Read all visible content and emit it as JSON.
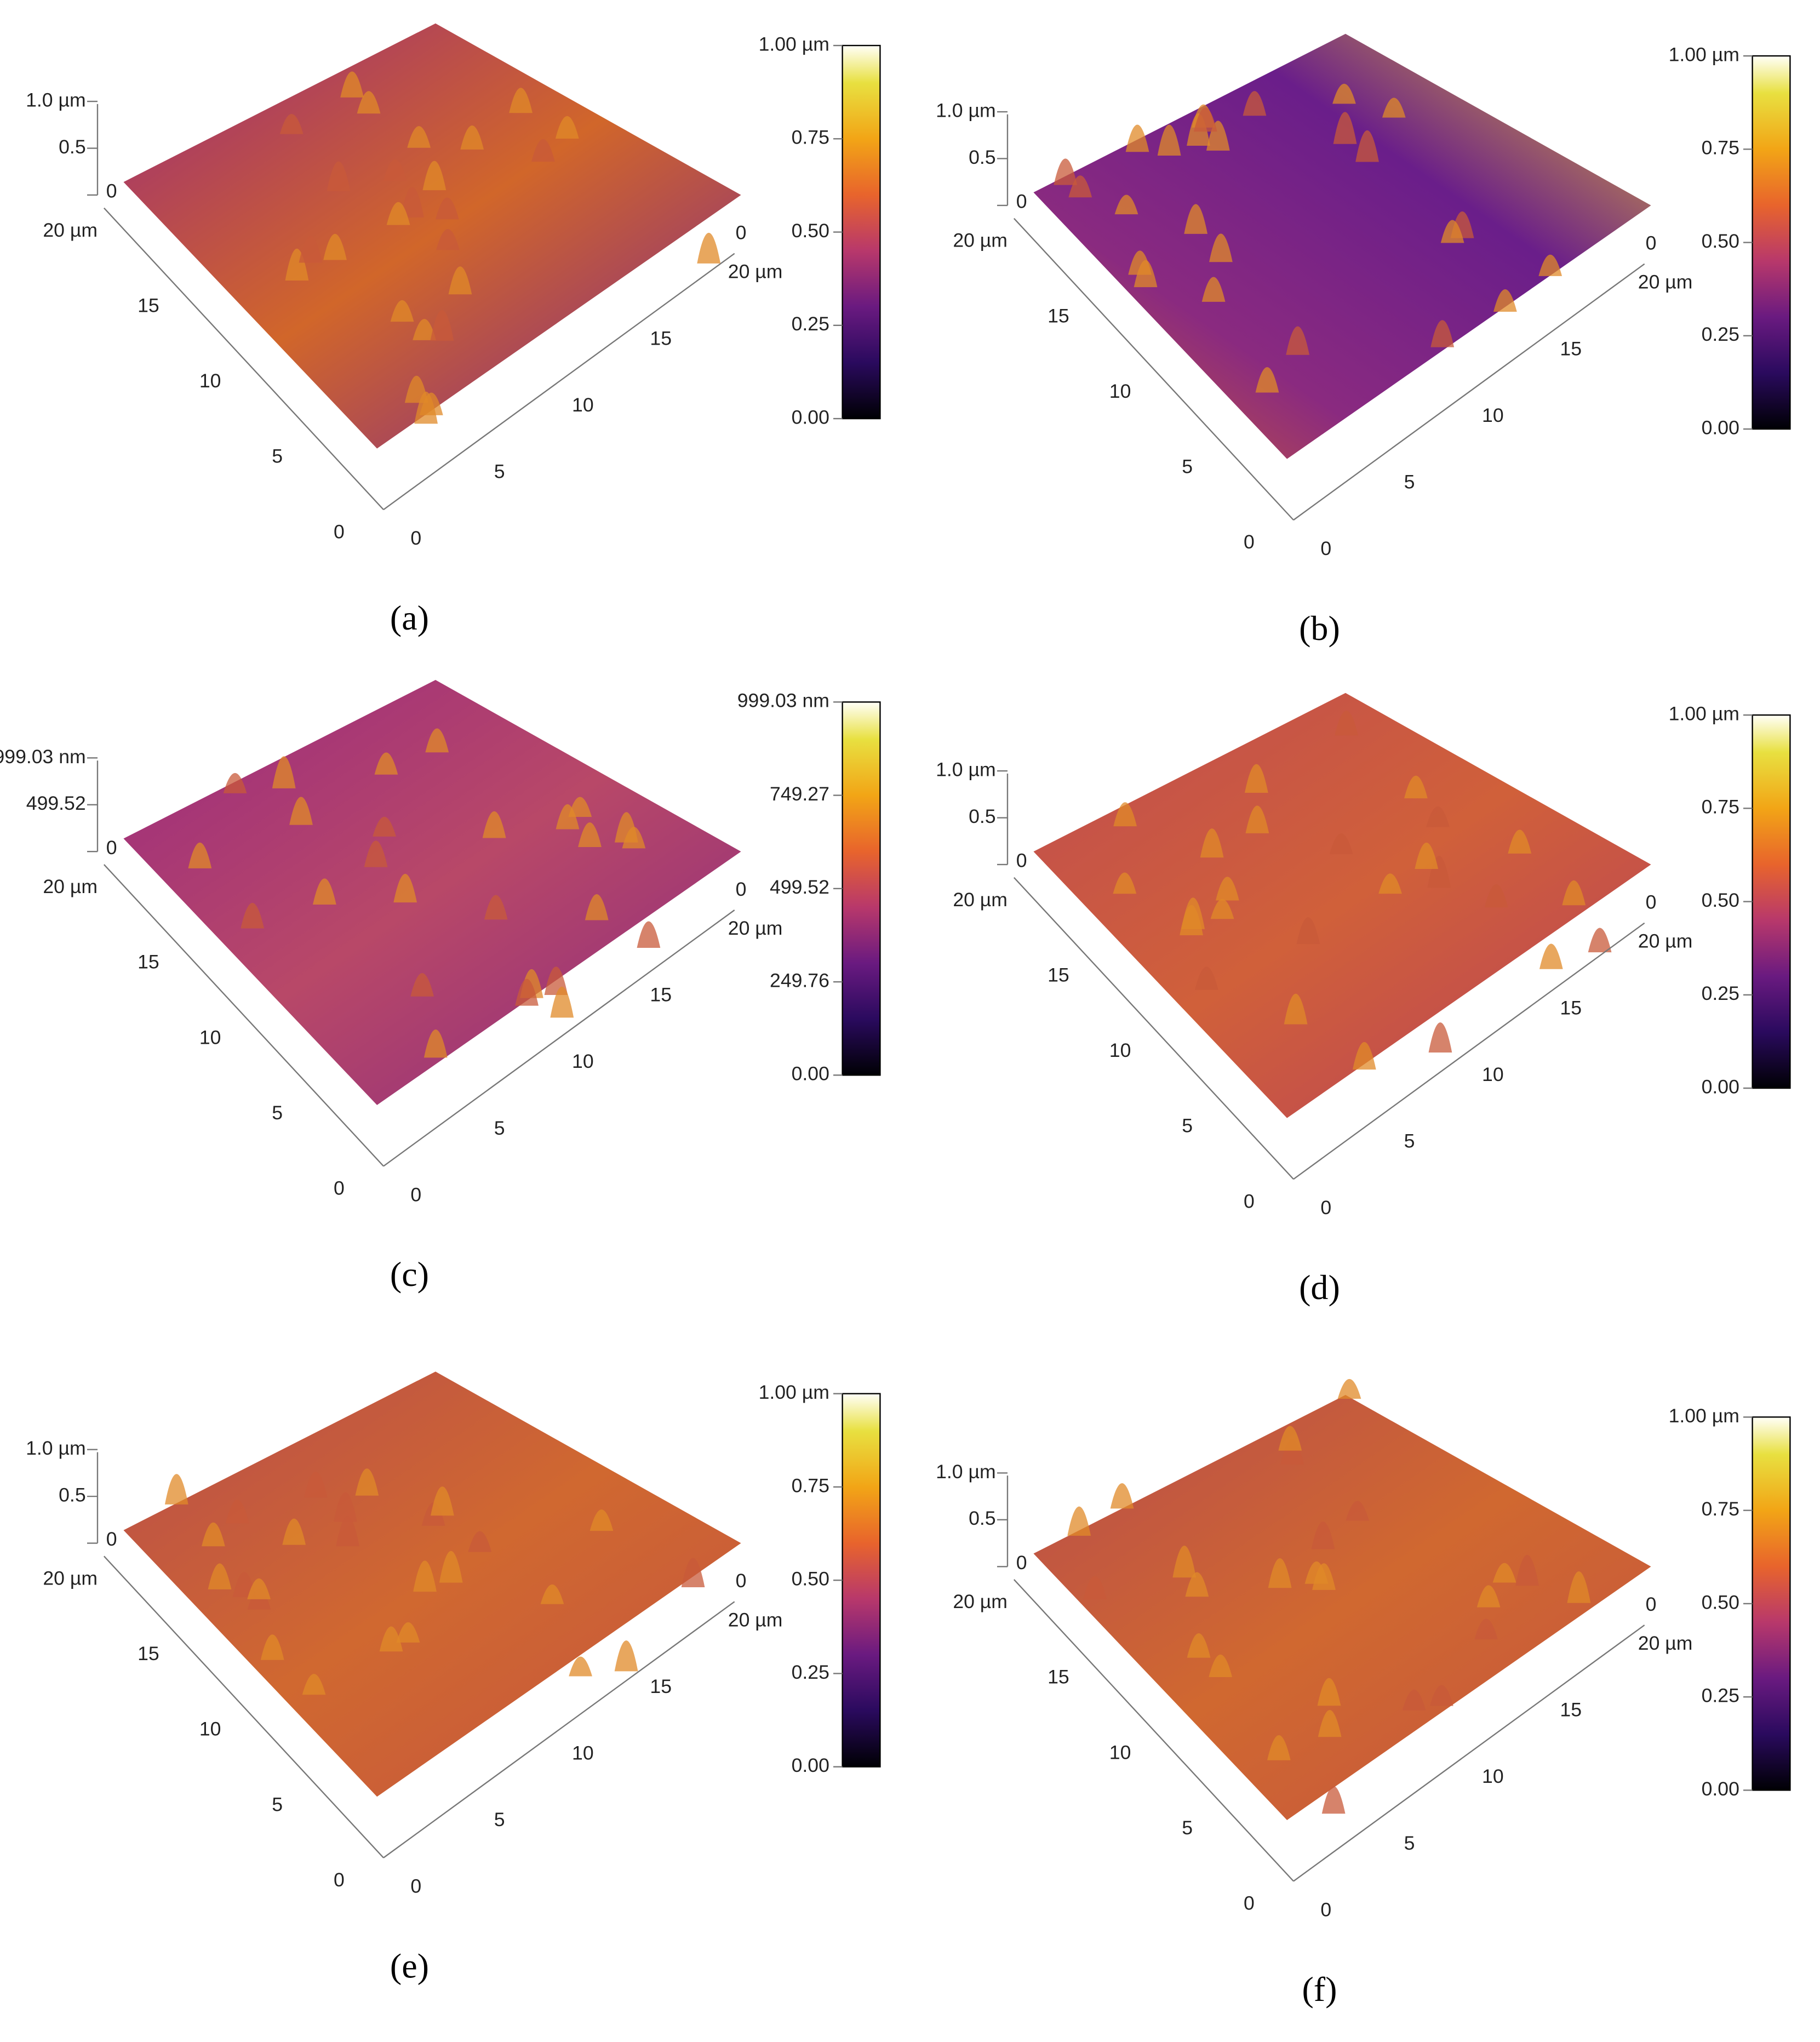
{
  "panels": [
    {
      "label": "(a)",
      "z_ticks": [
        "1.0 µm",
        "0.5",
        "0"
      ],
      "y_ticks": [
        "20 µm",
        "15",
        "10",
        "5",
        "0"
      ],
      "x_ticks": [
        "0",
        "5",
        "10",
        "15",
        "20 µm"
      ],
      "x_end": "0",
      "colorbar_ticks": [
        "1.00 µm",
        "0.75",
        "0.50",
        "0.25",
        "0.00"
      ]
    },
    {
      "label": "(b)",
      "z_ticks": [
        "1.0 µm",
        "0.5",
        "0"
      ],
      "y_ticks": [
        "20 µm",
        "15",
        "10",
        "5",
        "0"
      ],
      "x_ticks": [
        "0",
        "5",
        "10",
        "15",
        "20 µm"
      ],
      "x_end": "0",
      "colorbar_ticks": [
        "1.00 µm",
        "0.75",
        "0.50",
        "0.25",
        "0.00"
      ]
    },
    {
      "label": "(c)",
      "z_ticks": [
        "999.03 nm",
        "499.52",
        "0"
      ],
      "y_ticks": [
        "20 µm",
        "15",
        "10",
        "5",
        "0"
      ],
      "x_ticks": [
        "0",
        "5",
        "10",
        "15",
        "20 µm"
      ],
      "x_end": "0",
      "colorbar_ticks": [
        "999.03 nm",
        "749.27",
        "499.52",
        "249.76",
        "0.00"
      ]
    },
    {
      "label": "(d)",
      "z_ticks": [
        "1.0 µm",
        "0.5",
        "0"
      ],
      "y_ticks": [
        "20 µm",
        "15",
        "10",
        "5",
        "0"
      ],
      "x_ticks": [
        "0",
        "5",
        "10",
        "15",
        "20 µm"
      ],
      "x_end": "0",
      "colorbar_ticks": [
        "1.00 µm",
        "0.75",
        "0.50",
        "0.25",
        "0.00"
      ]
    },
    {
      "label": "(e)",
      "z_ticks": [
        "1.0 µm",
        "0.5",
        "0"
      ],
      "y_ticks": [
        "20 µm",
        "15",
        "10",
        "5",
        "0"
      ],
      "x_ticks": [
        "0",
        "5",
        "10",
        "15",
        "20 µm"
      ],
      "x_end": "0",
      "colorbar_ticks": [
        "1.00 µm",
        "0.75",
        "0.50",
        "0.25",
        "0.00"
      ]
    },
    {
      "label": "(f)",
      "z_ticks": [
        "1.0 µm",
        "0.5",
        "0"
      ],
      "y_ticks": [
        "20 µm",
        "15",
        "10",
        "5",
        "0"
      ],
      "x_ticks": [
        "0",
        "5",
        "10",
        "15",
        "20 µm"
      ],
      "x_end": "0",
      "colorbar_ticks": [
        "1.00 µm",
        "0.75",
        "0.50",
        "0.25",
        "0.00"
      ]
    }
  ]
}
